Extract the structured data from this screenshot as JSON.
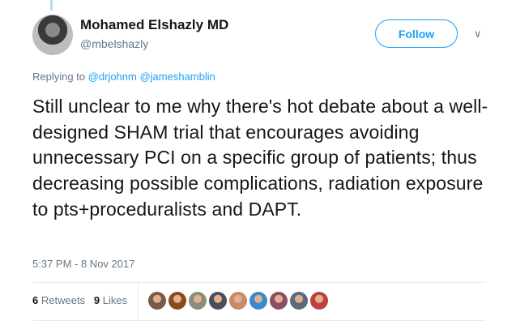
{
  "tweet": {
    "author_name": "Mohamed Elshazly MD",
    "author_handle": "@mbelshazly",
    "follow_label": "Follow",
    "replying_prefix": "Replying to",
    "replying_to": [
      "@drjohnm",
      "@jameshamblin"
    ],
    "text": "Still unclear to me why there's hot debate about a well-designed SHAM trial that encourages avoiding unnecessary PCI on a specific group of patients; thus decreasing possible complications, radiation exposure to pts+proceduralists and DAPT.",
    "timestamp": "5:37 PM - 8 Nov 2017",
    "retweets_count": "6",
    "retweets_label": "Retweets",
    "likes_count": "9",
    "likes_label": "Likes",
    "liker_avatar_colors": [
      "#7a5a48",
      "#8a4a1a",
      "#8c8c7a",
      "#4a4f5a",
      "#c98a6a",
      "#3a8acb",
      "#8a5060",
      "#5a6a7a",
      "#c04040"
    ]
  },
  "colors": {
    "accent": "#1da1f2",
    "muted": "#657786",
    "text": "#14171a"
  }
}
